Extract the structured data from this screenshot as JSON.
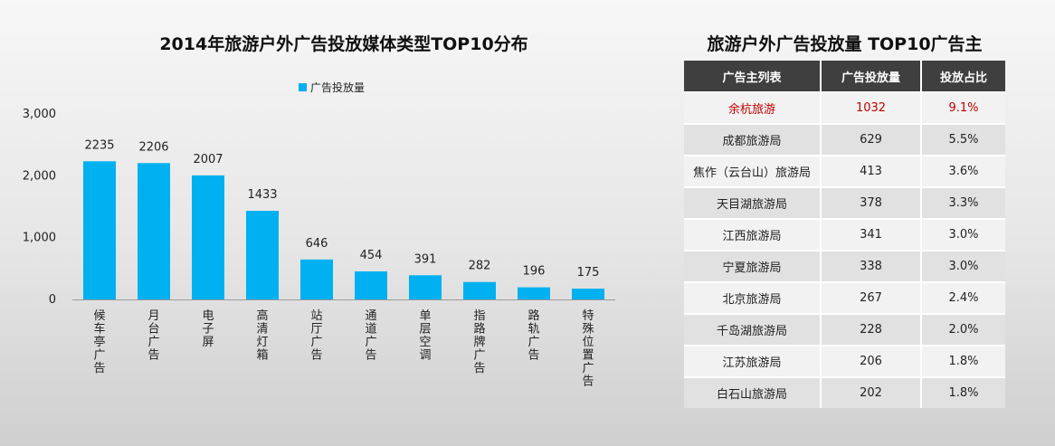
{
  "chart_data": {
    "type": "bar",
    "title": "2014年旅游户外广告投放媒体类型TOP10分布",
    "categories": [
      "候车亭广告",
      "月台广告",
      "电子屏",
      "高清灯箱",
      "站厅广告",
      "通道广告",
      "单层空调",
      "指路牌广告",
      "路轨广告",
      "特殊位置广告"
    ],
    "series": [
      {
        "name": "广告投放量",
        "values": [
          2235,
          2206,
          2007,
          1433,
          646,
          454,
          391,
          282,
          196,
          175
        ]
      }
    ],
    "ylim": [
      0,
      3000
    ],
    "yticks": [
      0,
      1000,
      2000,
      3000
    ],
    "ytick_labels": [
      "0",
      "1,000",
      "2,000",
      "3,000"
    ],
    "xlabel": "",
    "ylabel": "",
    "legend": "top",
    "grid": false,
    "bar_color": "#00b0f0"
  },
  "table": {
    "title": "旅游户外广告投放量 TOP10广告主",
    "headers": [
      "广告主列表",
      "广告投放量",
      "投放占比"
    ],
    "highlight_color": "#c00000",
    "rows": [
      {
        "name": "余杭旅游",
        "volume": "1032",
        "share": "9.1%"
      },
      {
        "name": "成都旅游局",
        "volume": "629",
        "share": "5.5%"
      },
      {
        "name": "焦作（云台山）旅游局",
        "volume": "413",
        "share": "3.6%"
      },
      {
        "name": "天目湖旅游局",
        "volume": "378",
        "share": "3.3%"
      },
      {
        "name": "江西旅游局",
        "volume": "341",
        "share": "3.0%"
      },
      {
        "name": "宁夏旅游局",
        "volume": "338",
        "share": "3.0%"
      },
      {
        "name": "北京旅游局",
        "volume": "267",
        "share": "2.4%"
      },
      {
        "name": "千岛湖旅游局",
        "volume": "228",
        "share": "2.0%"
      },
      {
        "name": "江苏旅游局",
        "volume": "206",
        "share": "1.8%"
      },
      {
        "name": "白石山旅游局",
        "volume": "202",
        "share": "1.8%"
      }
    ]
  }
}
